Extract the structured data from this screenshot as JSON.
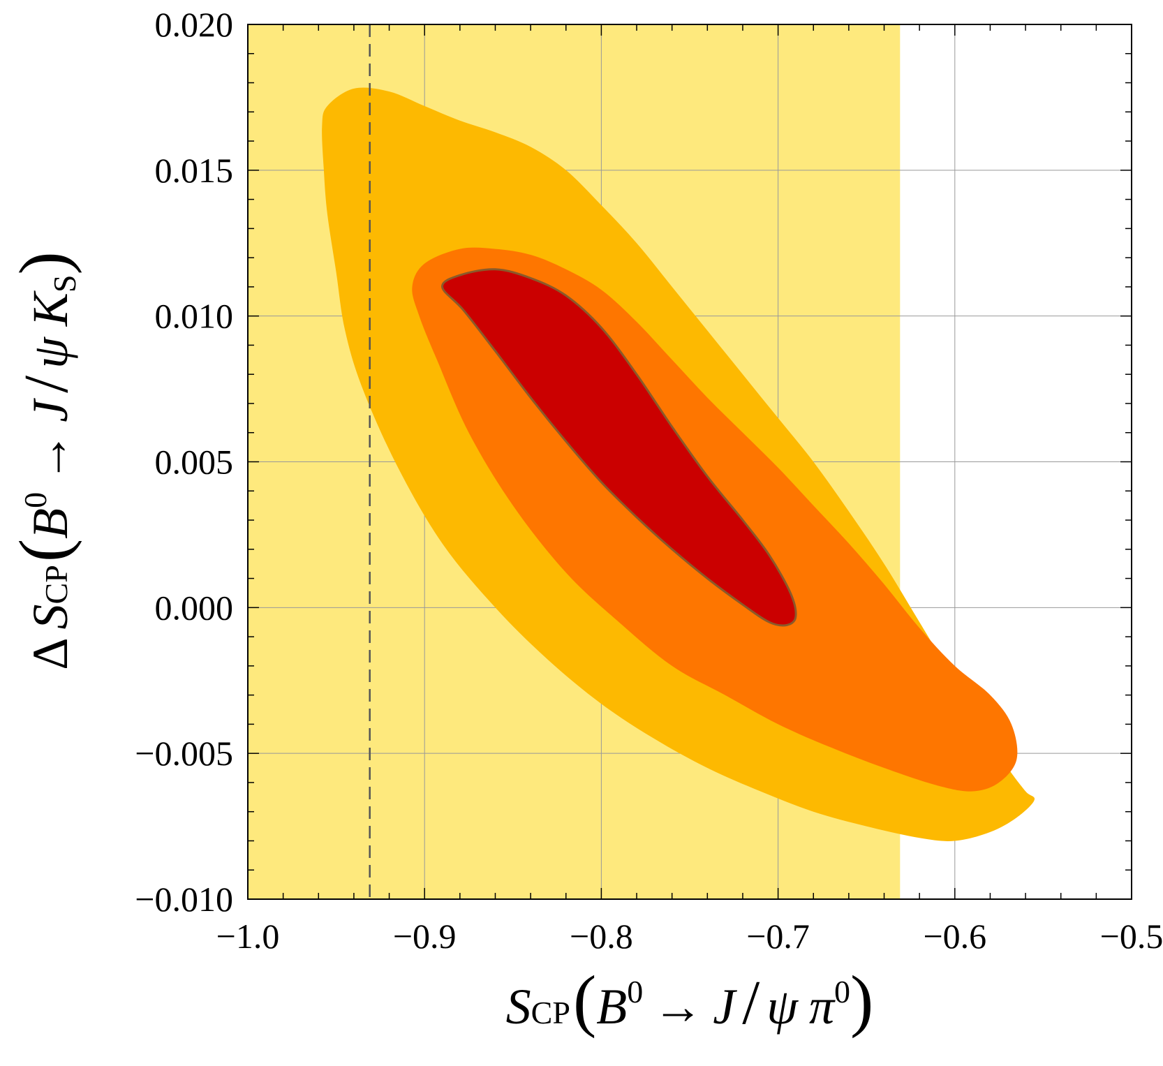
{
  "chart_data": {
    "type": "contour",
    "title": "",
    "x_range": [
      -1.0,
      -0.5
    ],
    "y_range": [
      -0.01,
      0.02
    ],
    "grid": true,
    "x_ticks": [
      -1.0,
      -0.9,
      -0.8,
      -0.7,
      -0.6,
      -0.5
    ],
    "y_ticks": [
      -0.01,
      -0.005,
      0.0,
      0.005,
      0.01,
      0.015,
      0.02
    ],
    "x_tick_labels": [
      "−1.0",
      "−0.9",
      "−0.8",
      "−0.7",
      "−0.6",
      "−0.5"
    ],
    "y_tick_labels": [
      "−0.010",
      "−0.005",
      "0.000",
      "0.005",
      "0.010",
      "0.015",
      "0.020"
    ],
    "xlabel": {
      "s": "S",
      "cp": "CP",
      "b": "B",
      "zero": "0",
      "arrow": "→",
      "j": "J",
      "slash": "/",
      "psi": "ψ",
      "pi": "π",
      "pizero": "0"
    },
    "ylabel": {
      "delta": "Δ",
      "s": "S",
      "cp": "CP",
      "b": "B",
      "zero": "0",
      "arrow": "→",
      "j": "J",
      "slash": "/",
      "psi": "ψ",
      "k": "K",
      "ksub": "S"
    },
    "band": {
      "name": "experimental band",
      "x": [
        -1.0,
        -0.631
      ],
      "y": [
        -0.01,
        0.02
      ],
      "color": "#fee97d"
    },
    "reference_line": {
      "name": "dashed reference",
      "x": -0.931,
      "style": "dashed",
      "color": "#555555"
    },
    "regions": [
      {
        "name": "outer-region",
        "color": "#fdb901",
        "points": [
          [
            -0.958,
            0.0165
          ],
          [
            -0.955,
            0.0172
          ],
          [
            -0.94,
            0.0178
          ],
          [
            -0.92,
            0.0177
          ],
          [
            -0.9,
            0.0172
          ],
          [
            -0.88,
            0.0167
          ],
          [
            -0.86,
            0.0163
          ],
          [
            -0.84,
            0.0158
          ],
          [
            -0.82,
            0.015
          ],
          [
            -0.8,
            0.0138
          ],
          [
            -0.78,
            0.0125
          ],
          [
            -0.76,
            0.011
          ],
          [
            -0.74,
            0.0095
          ],
          [
            -0.72,
            0.008
          ],
          [
            -0.7,
            0.0065
          ],
          [
            -0.68,
            0.005
          ],
          [
            -0.66,
            0.0033
          ],
          [
            -0.64,
            0.0015
          ],
          [
            -0.62,
            -0.0005
          ],
          [
            -0.6,
            -0.0025
          ],
          [
            -0.59,
            -0.0035
          ],
          [
            -0.58,
            -0.0045
          ],
          [
            -0.57,
            -0.0055
          ],
          [
            -0.56,
            -0.0063
          ],
          [
            -0.555,
            -0.0066
          ],
          [
            -0.565,
            -0.0072
          ],
          [
            -0.58,
            -0.0077
          ],
          [
            -0.6,
            -0.008
          ],
          [
            -0.62,
            -0.0079
          ],
          [
            -0.65,
            -0.0075
          ],
          [
            -0.68,
            -0.007
          ],
          [
            -0.71,
            -0.0063
          ],
          [
            -0.74,
            -0.0055
          ],
          [
            -0.77,
            -0.0045
          ],
          [
            -0.8,
            -0.0033
          ],
          [
            -0.83,
            -0.0018
          ],
          [
            -0.86,
            0.0
          ],
          [
            -0.89,
            0.0022
          ],
          [
            -0.915,
            0.0048
          ],
          [
            -0.935,
            0.0075
          ],
          [
            -0.945,
            0.0095
          ],
          [
            -0.95,
            0.0115
          ],
          [
            -0.955,
            0.0135
          ],
          [
            -0.957,
            0.015
          ]
        ]
      },
      {
        "name": "middle-region",
        "color": "#fe7600",
        "points": [
          [
            -0.907,
            0.011
          ],
          [
            -0.9,
            0.0118
          ],
          [
            -0.88,
            0.0123
          ],
          [
            -0.86,
            0.0123
          ],
          [
            -0.84,
            0.0121
          ],
          [
            -0.82,
            0.0116
          ],
          [
            -0.8,
            0.0109
          ],
          [
            -0.78,
            0.0098
          ],
          [
            -0.76,
            0.0085
          ],
          [
            -0.74,
            0.0072
          ],
          [
            -0.72,
            0.006
          ],
          [
            -0.7,
            0.0048
          ],
          [
            -0.68,
            0.0035
          ],
          [
            -0.66,
            0.0022
          ],
          [
            -0.64,
            0.0008
          ],
          [
            -0.62,
            -0.0007
          ],
          [
            -0.6,
            -0.002
          ],
          [
            -0.58,
            -0.003
          ],
          [
            -0.568,
            -0.004
          ],
          [
            -0.565,
            -0.0052
          ],
          [
            -0.575,
            -0.006
          ],
          [
            -0.59,
            -0.0063
          ],
          [
            -0.61,
            -0.0061
          ],
          [
            -0.64,
            -0.0055
          ],
          [
            -0.67,
            -0.0048
          ],
          [
            -0.7,
            -0.004
          ],
          [
            -0.73,
            -0.003
          ],
          [
            -0.76,
            -0.002
          ],
          [
            -0.79,
            -0.0005
          ],
          [
            -0.82,
            0.0012
          ],
          [
            -0.85,
            0.0035
          ],
          [
            -0.875,
            0.006
          ],
          [
            -0.893,
            0.0085
          ],
          [
            -0.903,
            0.01
          ]
        ]
      },
      {
        "name": "inner-region",
        "color": "#cb0000",
        "points": [
          [
            -0.89,
            0.011
          ],
          [
            -0.88,
            0.0114
          ],
          [
            -0.86,
            0.0116
          ],
          [
            -0.84,
            0.0113
          ],
          [
            -0.82,
            0.0107
          ],
          [
            -0.8,
            0.0096
          ],
          [
            -0.78,
            0.008
          ],
          [
            -0.76,
            0.0062
          ],
          [
            -0.74,
            0.0045
          ],
          [
            -0.72,
            0.003
          ],
          [
            -0.705,
            0.0018
          ],
          [
            -0.693,
            0.0005
          ],
          [
            -0.69,
            -0.0003
          ],
          [
            -0.695,
            -0.0006
          ],
          [
            -0.705,
            -0.0005
          ],
          [
            -0.72,
            0.0001
          ],
          [
            -0.74,
            0.001
          ],
          [
            -0.76,
            0.002
          ],
          [
            -0.78,
            0.0031
          ],
          [
            -0.8,
            0.0043
          ],
          [
            -0.82,
            0.0057
          ],
          [
            -0.84,
            0.0072
          ],
          [
            -0.86,
            0.0088
          ],
          [
            -0.878,
            0.0102
          ]
        ]
      }
    ]
  }
}
